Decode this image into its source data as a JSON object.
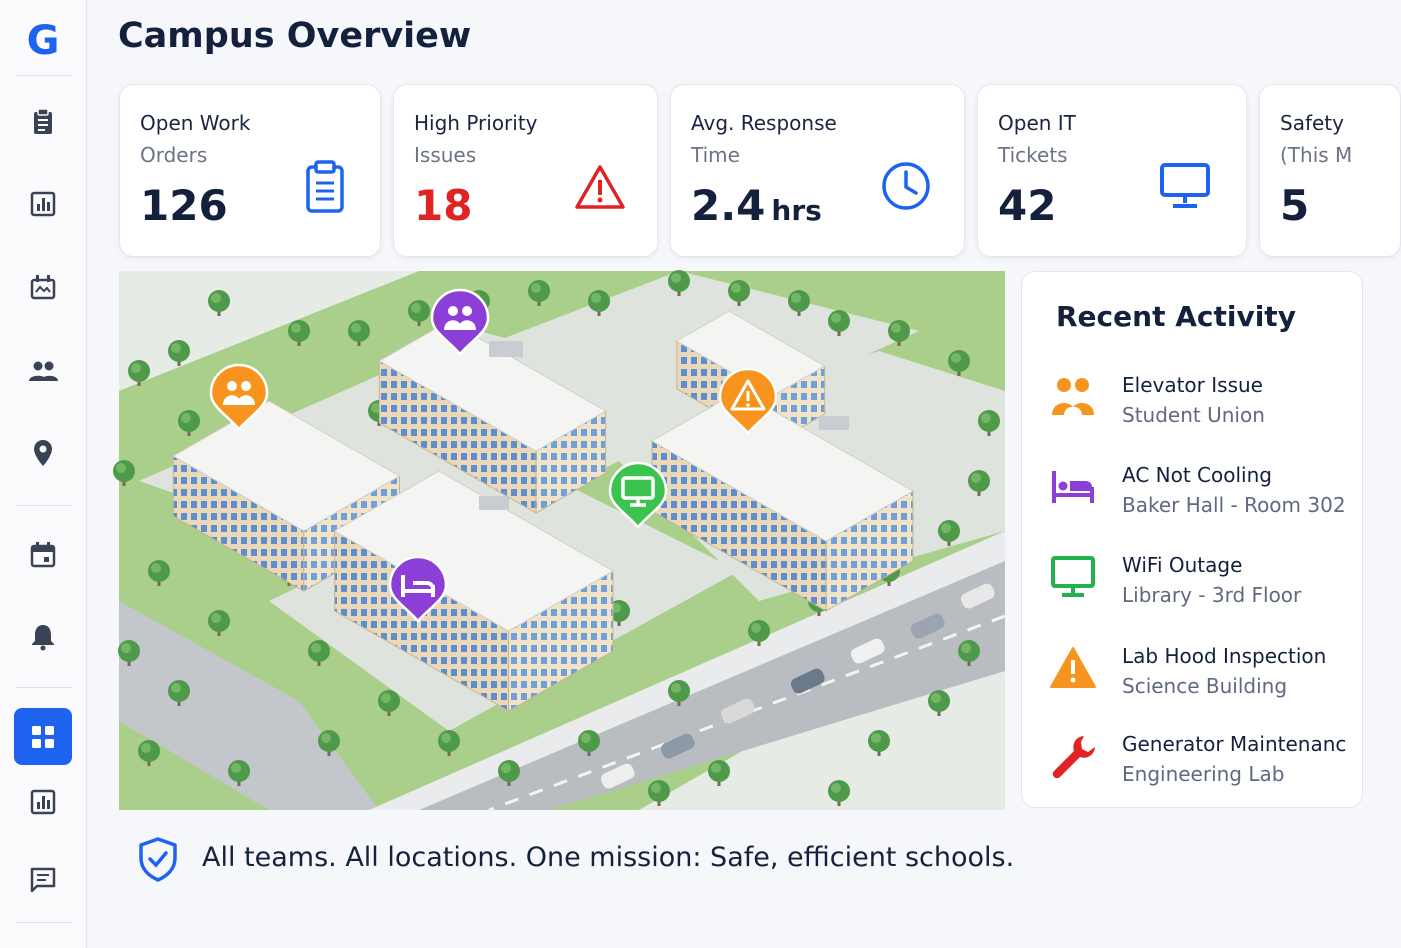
{
  "sidebar": {
    "logo": "G"
  },
  "header": {
    "title": "Campus Overview"
  },
  "cards": [
    {
      "label": [
        "Open Work",
        "Orders"
      ],
      "value": 126
    },
    {
      "label": [
        "High Priority",
        "Issues"
      ],
      "value": 18
    },
    {
      "label": [
        "Avg. Response",
        "Time"
      ],
      "value": 2.4,
      "unit": "hrs"
    },
    {
      "label": [
        "Open IT",
        "Tickets"
      ],
      "value": 42
    },
    {
      "label": [
        "Safety",
        "(This M"
      ],
      "value": 5
    }
  ],
  "activity": {
    "title": "Recent Activity",
    "items": [
      {
        "title": "Elevator Issue",
        "subtitle": "Student Union"
      },
      {
        "title": "AC Not Cooling",
        "subtitle": "Baker Hall - Room 302"
      },
      {
        "title": "WiFi Outage",
        "subtitle": "Library - 3rd Floor"
      },
      {
        "title": "Lab Hood Inspection",
        "subtitle": "Science Building"
      },
      {
        "title": "Generator Maintenanc",
        "subtitle": "Engineering Lab"
      }
    ]
  },
  "footer": {
    "tagline": "All teams. All locations. One mission: Safe, efficient schools."
  }
}
